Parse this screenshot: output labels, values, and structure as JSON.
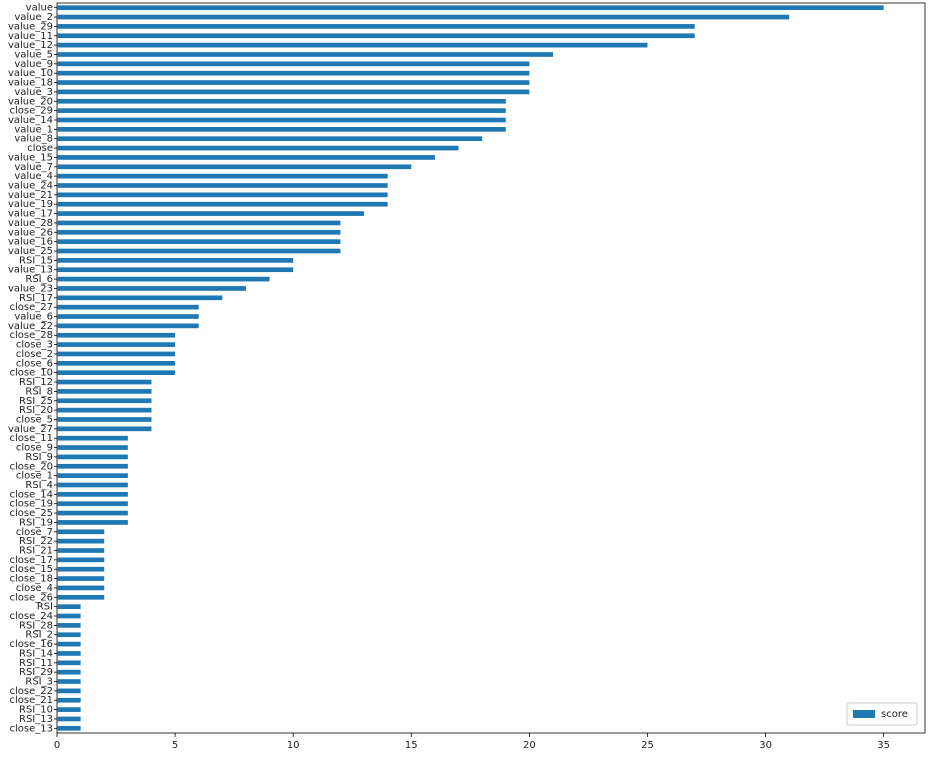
{
  "chart_data": {
    "type": "barh",
    "categories": [
      "value",
      "value_2",
      "value_29",
      "value_11",
      "value_12",
      "value_5",
      "value_9",
      "value_10",
      "value_18",
      "value_3",
      "value_20",
      "close_29",
      "value_14",
      "value_1",
      "value_8",
      "close",
      "value_15",
      "value_7",
      "value_4",
      "value_24",
      "value_21",
      "value_19",
      "value_17",
      "value_28",
      "value_26",
      "value_16",
      "value_25",
      "RSI_15",
      "value_13",
      "RSI_6",
      "value_23",
      "RSI_17",
      "close_27",
      "value_6",
      "value_22",
      "close_28",
      "close_3",
      "close_2",
      "close_6",
      "close_10",
      "RSI_12",
      "RSI_8",
      "RSI_25",
      "RSI_20",
      "close_5",
      "value_27",
      "close_11",
      "close_9",
      "RSI_9",
      "close_20",
      "close_1",
      "RSI_4",
      "close_14",
      "close_19",
      "close_25",
      "RSI_19",
      "close_7",
      "RSI_22",
      "RSI_21",
      "close_17",
      "close_15",
      "close_18",
      "close_4",
      "close_26",
      "RSI",
      "close_24",
      "RSI_28",
      "RSI_2",
      "close_16",
      "RSI_14",
      "RSI_11",
      "RSI_29",
      "RSI_3",
      "close_22",
      "close_21",
      "RSI_10",
      "RSI_13",
      "close_13"
    ],
    "series": [
      {
        "name": "score",
        "color": "#1f77b4",
        "values": [
          35,
          31,
          27,
          27,
          25,
          21,
          20,
          20,
          20,
          20,
          19,
          19,
          19,
          19,
          18,
          17,
          16,
          15,
          14,
          14,
          14,
          14,
          13,
          12,
          12,
          12,
          12,
          10,
          10,
          9,
          8,
          7,
          6,
          6,
          6,
          5,
          5,
          5,
          5,
          5,
          4,
          4,
          4,
          4,
          4,
          4,
          3,
          3,
          3,
          3,
          3,
          3,
          3,
          3,
          3,
          3,
          2,
          2,
          2,
          2,
          2,
          2,
          2,
          2,
          1,
          1,
          1,
          1,
          1,
          1,
          1,
          1,
          1,
          1,
          1,
          1,
          1,
          1
        ]
      }
    ],
    "xlim": [
      0,
      36.75
    ],
    "xticks": [
      0,
      5,
      10,
      15,
      20,
      25,
      30,
      35
    ],
    "legend": "lower right"
  }
}
